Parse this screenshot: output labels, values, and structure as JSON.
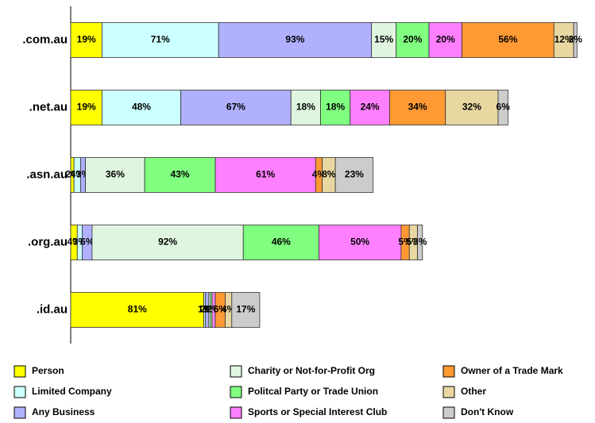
{
  "chart_data": {
    "type": "stacked-barh",
    "categories": [
      ".com.au",
      ".net.au",
      ".asn.au",
      ".org.au",
      ".id.au"
    ],
    "xlim": [
      0,
      318
    ],
    "series": [
      {
        "name": "Person",
        "color": "#ffff00",
        "values": [
          19,
          19,
          2,
          4,
          81
        ],
        "value_labels": [
          "19%",
          "19%",
          "2%",
          "4%",
          "81%"
        ]
      },
      {
        "name": "Limited Company",
        "color": "#ccffff",
        "values": [
          71,
          48,
          4,
          3,
          1
        ],
        "value_labels": [
          "71%",
          "48%",
          "4%",
          "3%",
          "1%"
        ]
      },
      {
        "name": "Any Business",
        "color": "#b0b0ff",
        "values": [
          93,
          67,
          3,
          6,
          2
        ],
        "value_labels": [
          "93%",
          "67%",
          "3%",
          "6%",
          "2%"
        ]
      },
      {
        "name": "Charity or Not-for-Profit Org",
        "color": "#e0f5e0",
        "values": [
          15,
          18,
          36,
          92,
          1
        ],
        "value_labels": [
          "15%",
          "18%",
          "36%",
          "92%",
          "1%"
        ]
      },
      {
        "name": "Politcal Party or Trade Union",
        "color": "#80ff80",
        "values": [
          20,
          18,
          43,
          46,
          1
        ],
        "value_labels": [
          "20%",
          "18%",
          "43%",
          "46%",
          "1%"
        ]
      },
      {
        "name": "Sports or Special Interest Club",
        "color": "#ff80ff",
        "values": [
          20,
          24,
          61,
          50,
          2
        ],
        "value_labels": [
          "20%",
          "24%",
          "61%",
          "50%",
          "2%"
        ]
      },
      {
        "name": "Owner of a Trade Mark",
        "color": "#ff9933",
        "values": [
          56,
          34,
          4,
          5,
          6
        ],
        "value_labels": [
          "56%",
          "34%",
          "4%",
          "5%",
          "6%"
        ]
      },
      {
        "name": "Other",
        "color": "#e8d7a0",
        "values": [
          12,
          32,
          8,
          5,
          4
        ],
        "value_labels": [
          "12%",
          "32%",
          "8%",
          "5%",
          "4%"
        ]
      },
      {
        "name": "Don't Know",
        "color": "#cccccc",
        "values": [
          2,
          6,
          23,
          3,
          17
        ],
        "value_labels": [
          "2%",
          "6%",
          "23%",
          "3%",
          "17%"
        ]
      }
    ]
  }
}
